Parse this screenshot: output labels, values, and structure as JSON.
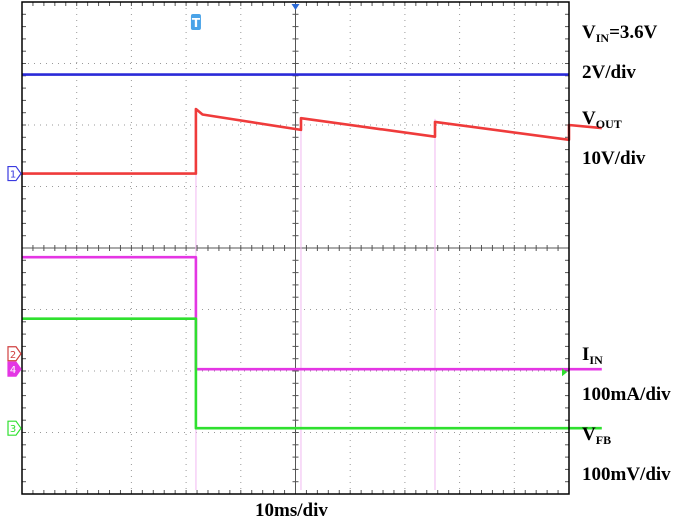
{
  "chart_data": {
    "type": "line",
    "title": "",
    "grid": true,
    "x_divisions": 10,
    "y_divisions": 8,
    "x_label": "10ms/div",
    "trigger_marker": "T",
    "series": [
      {
        "name": "",
        "channel": "VIN",
        "color": "#2a2ad8",
        "points": [
          [
            0,
            6.82
          ],
          [
            10,
            6.82
          ]
        ]
      },
      {
        "name": "",
        "channel": "VOUT",
        "color": "#ef3b3b",
        "points": [
          [
            0,
            5.21
          ],
          [
            3.18,
            5.21
          ],
          [
            3.18,
            6.26
          ],
          [
            3.3,
            6.17
          ],
          [
            5.1,
            5.92
          ],
          [
            5.1,
            6.11
          ],
          [
            7.55,
            5.81
          ],
          [
            7.55,
            6.05
          ],
          [
            10,
            5.76
          ],
          [
            10,
            6.0
          ],
          [
            10.6,
            5.95
          ]
        ]
      },
      {
        "name": "",
        "channel": "IIN",
        "color": "#e436e4",
        "points": [
          [
            0,
            3.85
          ],
          [
            3.18,
            3.85
          ],
          [
            3.18,
            2.03
          ],
          [
            10.6,
            2.03
          ]
        ]
      },
      {
        "name": "",
        "channel": "VFB",
        "color": "#2fe02f",
        "points": [
          [
            0,
            2.85
          ],
          [
            3.18,
            2.85
          ],
          [
            3.18,
            1.07
          ],
          [
            10.6,
            1.07
          ]
        ]
      }
    ],
    "spikes_x": [
      5.1,
      7.55,
      10
    ]
  },
  "channel_markers": [
    {
      "text": "1",
      "color": "#3a3ae0"
    },
    {
      "text": "2",
      "color": "#d04040"
    },
    {
      "text": "4",
      "color": "#e436e4"
    },
    {
      "text": "3",
      "color": "#2fe02f"
    }
  ],
  "labels": {
    "vin_main": "V",
    "vin_sub": "IN",
    "vin_val": "=3.6V",
    "vin_scale": "2V/div",
    "vout_main": "V",
    "vout_sub": "OUT",
    "vout_scale": "10V/div",
    "iin_main": "I",
    "iin_sub": "IN",
    "iin_scale": "100mA/div",
    "vfb_main": "V",
    "vfb_sub": "FB",
    "vfb_scale": "100mV/div"
  }
}
